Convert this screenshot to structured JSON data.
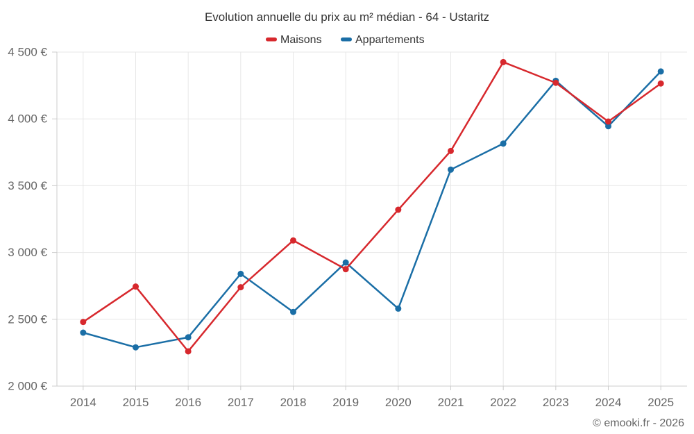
{
  "chart_data": {
    "type": "line",
    "title": "Evolution annuelle du prix au m² médian - 64 - Ustaritz",
    "categories": [
      "2014",
      "2015",
      "2016",
      "2017",
      "2018",
      "2019",
      "2020",
      "2021",
      "2022",
      "2023",
      "2024",
      "2025"
    ],
    "series": [
      {
        "name": "Maisons",
        "color": "#d7282d",
        "values": [
          2480,
          2745,
          2260,
          2740,
          3090,
          2875,
          3320,
          3760,
          4425,
          4270,
          3980,
          4265
        ]
      },
      {
        "name": "Appartements",
        "color": "#1a6ea6",
        "values": [
          2400,
          2290,
          2365,
          2840,
          2555,
          2925,
          2580,
          3620,
          3815,
          4285,
          3945,
          4355
        ]
      }
    ],
    "xlabel": "",
    "ylabel": "",
    "ylim": [
      2000,
      4500
    ],
    "yticks": [
      {
        "value": 2000,
        "label": "2 000 €"
      },
      {
        "value": 2500,
        "label": "2 500 €"
      },
      {
        "value": 3000,
        "label": "3 000 €"
      },
      {
        "value": 3500,
        "label": "3 500 €"
      },
      {
        "value": 4000,
        "label": "4 000 €"
      },
      {
        "value": 4500,
        "label": "4 500 €"
      }
    ],
    "grid": true,
    "legend_position": "top"
  },
  "footer": {
    "credit": "© emooki.fr - 2026"
  },
  "colors": {
    "grid": "#e7e7e7",
    "axis": "#cccccc",
    "title_text": "#333333",
    "label_text": "#666666",
    "background": "#ffffff"
  }
}
